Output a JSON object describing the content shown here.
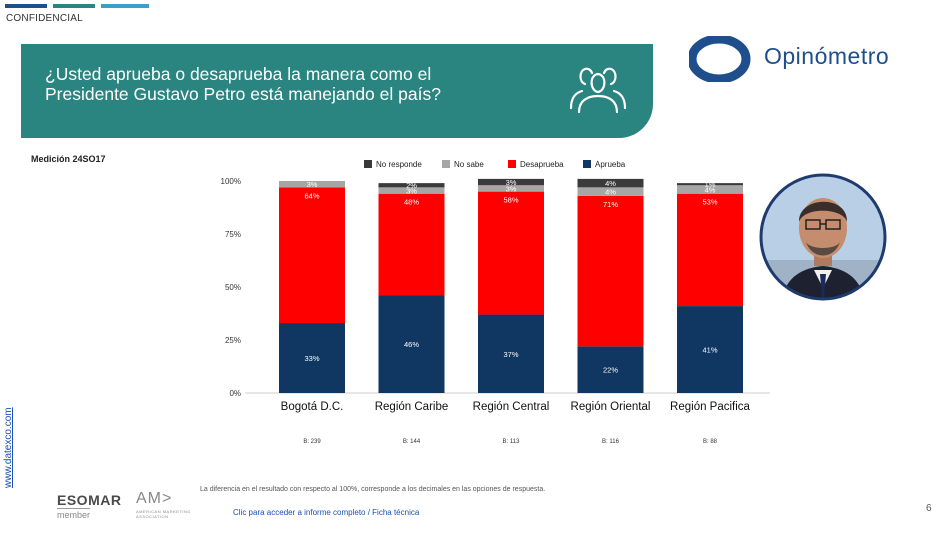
{
  "header": {
    "confidential_label": "CONFIDENCIAL",
    "bar_colors": [
      "#1f4e8c",
      "#2a8480",
      "#3aa0c8"
    ]
  },
  "banner": {
    "question": "¿Usted aprueba o desaprueba la manera como el Presidente Gustavo Petro está manejando el país?",
    "icon": "people-group-icon",
    "background_color": "#2a8480"
  },
  "brand": {
    "name": "Opinómetro",
    "color": "#1f4e8c"
  },
  "medicion_label": "Medición 24SO17",
  "chart_data": {
    "type": "bar",
    "stacked": true,
    "categories": [
      "Bogotá D.C.",
      "Región Caribe",
      "Región Central",
      "Región Oriental",
      "Región Pacifica"
    ],
    "series": [
      {
        "name": "Aprueba",
        "color": "#0f3761",
        "values": [
          33,
          46,
          37,
          22,
          41
        ],
        "labels": [
          "33%",
          "46%",
          "37%",
          "22%",
          "41%"
        ]
      },
      {
        "name": "Desaprueba",
        "color": "#ff0000",
        "values": [
          64,
          48,
          58,
          71,
          53
        ],
        "labels": [
          "64%",
          "48%",
          "58%",
          "71%",
          "53%"
        ]
      },
      {
        "name": "No sabe",
        "color": "#a6a6a6",
        "values": [
          3,
          3,
          3,
          4,
          4
        ],
        "labels": [
          "3%",
          "3%",
          "3%",
          "4%",
          "4%"
        ]
      },
      {
        "name": "No responde",
        "color": "#3a3a3a",
        "values": [
          0,
          2,
          3,
          4,
          1
        ],
        "labels": [
          "",
          "2%",
          "3%",
          "4%",
          "1%"
        ]
      }
    ],
    "legend_order": [
      "No responde",
      "No sabe",
      "Desaprueba",
      "Aprueba"
    ],
    "legend_position": "top",
    "y_ticks": [
      "0%",
      "25%",
      "50%",
      "75%",
      "100%"
    ],
    "ylim": [
      0,
      100
    ],
    "base_labels": [
      "B: 239",
      "B: 144",
      "B: 113",
      "B: 116",
      "B: 88"
    ],
    "grid": false
  },
  "footer": {
    "website": "www.datexco.com",
    "note": "La diferencia en el resultado con respecto al 100%, corresponde a los decimales en las opciones de respuesta.",
    "esomar": "ESOMAR",
    "esomar_sub": "member",
    "ama": "AM>",
    "ama_sub": "AMERICAN MARKETING ASSOCIATION",
    "link": "Clic para acceder a informe completo / Ficha técnica",
    "page_number": "6"
  }
}
